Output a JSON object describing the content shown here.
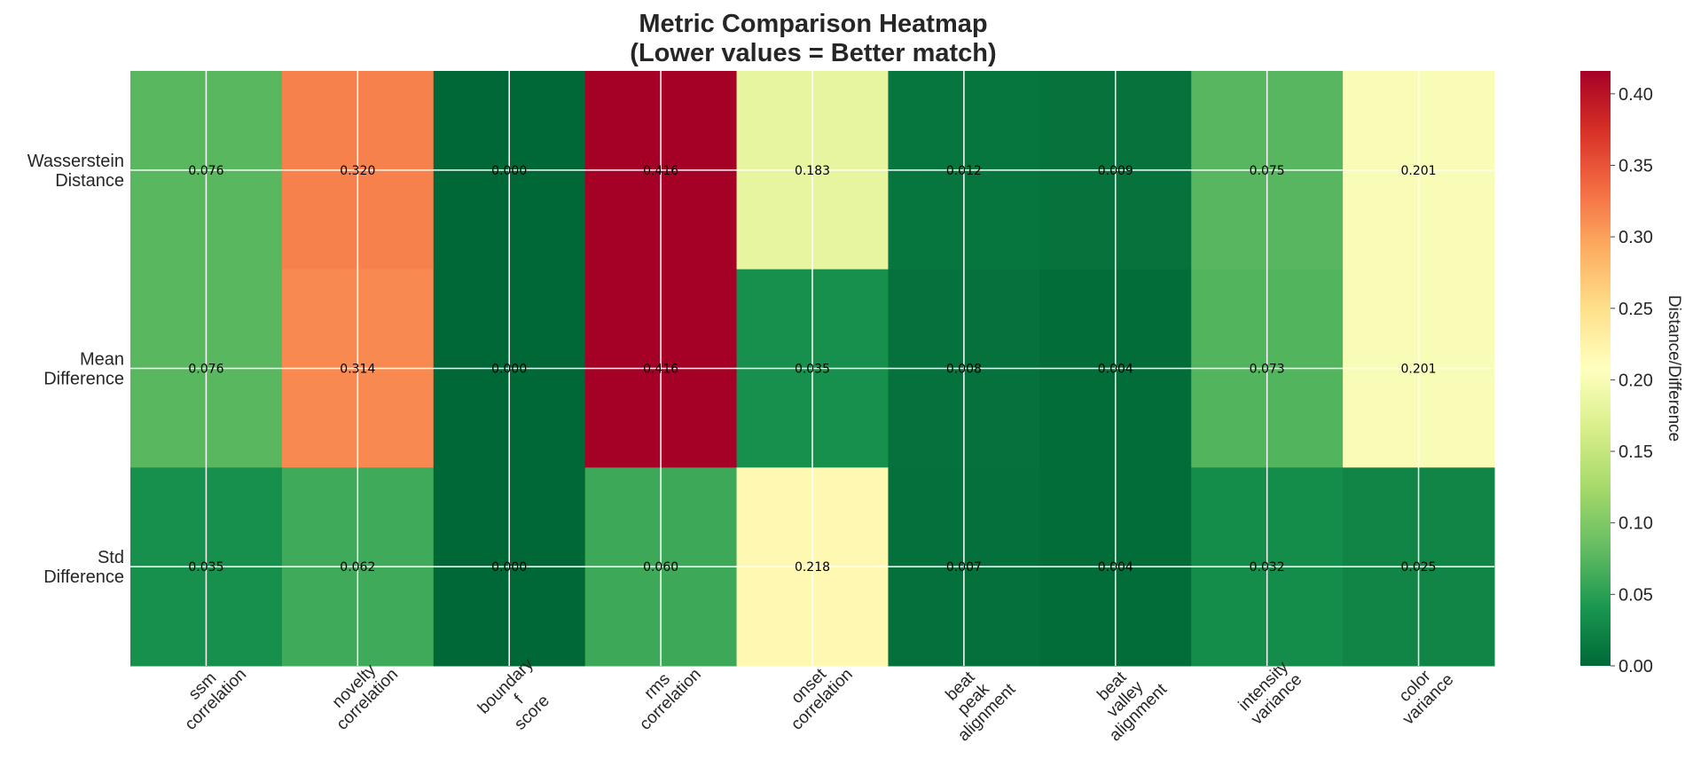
{
  "chart_data": {
    "type": "heatmap",
    "title": [
      "Metric Comparison Heatmap",
      "(Lower values = Better match)"
    ],
    "rows": [
      [
        "Wasserstein",
        "Distance"
      ],
      [
        "Mean",
        "Difference"
      ],
      [
        "Std",
        "Difference"
      ]
    ],
    "columns": [
      [
        "ssm",
        "correlation"
      ],
      [
        "novelty",
        "correlation"
      ],
      [
        "boundary",
        "f",
        "score"
      ],
      [
        "rms",
        "correlation"
      ],
      [
        "onset",
        "correlation"
      ],
      [
        "beat",
        "peak",
        "alignment"
      ],
      [
        "beat",
        "valley",
        "alignment"
      ],
      [
        "intensity",
        "variance"
      ],
      [
        "color",
        "variance"
      ]
    ],
    "values": [
      [
        0.076,
        0.32,
        0.0,
        0.416,
        0.183,
        0.012,
        0.009,
        0.075,
        0.201
      ],
      [
        0.076,
        0.314,
        0.0,
        0.416,
        0.035,
        0.008,
        0.004,
        0.073,
        0.201
      ],
      [
        0.035,
        0.062,
        0.0,
        0.06,
        0.218,
        0.007,
        0.004,
        0.032,
        0.025
      ]
    ],
    "value_format": "0.000",
    "colormap": "RdYlGn_r",
    "vmin": 0.0,
    "vmax": 0.416,
    "colorbar": {
      "label": "Distance/Difference",
      "ticks": [
        "0.00",
        "0.05",
        "0.10",
        "0.15",
        "0.20",
        "0.25",
        "0.30",
        "0.35",
        "0.40"
      ]
    },
    "grid": true,
    "grid_color": "#ffffff"
  }
}
